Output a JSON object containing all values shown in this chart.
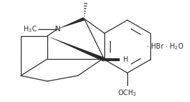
{
  "bg_color": "#ffffff",
  "line_color": "#2a2a2a",
  "text_color": "#2a2a2a",
  "figsize": [
    2.73,
    1.47
  ],
  "dpi": 100,
  "lw": 0.9
}
